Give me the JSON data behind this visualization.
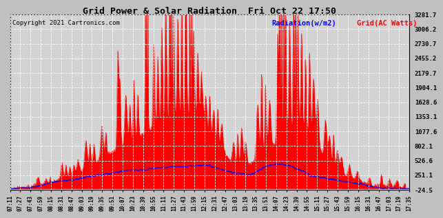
{
  "title": "Grid Power & Solar Radiation  Fri Oct 22 17:50",
  "copyright": "Copyright 2021 Cartronics.com",
  "legend_radiation": "Radiation(w/m2)",
  "legend_grid": "Grid(AC Watts)",
  "yticks": [
    3281.7,
    3006.2,
    2730.7,
    2455.2,
    2179.7,
    1904.1,
    1628.6,
    1353.1,
    1077.6,
    802.1,
    526.6,
    251.1,
    -24.5
  ],
  "ylim_min": -24.5,
  "ylim_max": 3281.7,
  "xtick_labels": [
    "07:11",
    "07:27",
    "07:43",
    "07:59",
    "08:15",
    "08:31",
    "08:47",
    "09:03",
    "09:19",
    "09:35",
    "09:51",
    "10:07",
    "10:23",
    "10:39",
    "10:55",
    "11:11",
    "11:27",
    "11:43",
    "11:59",
    "12:15",
    "12:31",
    "12:47",
    "13:03",
    "13:19",
    "13:35",
    "13:51",
    "14:07",
    "14:23",
    "14:39",
    "14:55",
    "15:11",
    "15:27",
    "15:43",
    "15:59",
    "16:15",
    "16:31",
    "16:47",
    "17:03",
    "17:19",
    "17:35"
  ],
  "background_color": "#c0c0c0",
  "plot_bg_color": "#d3d3d3",
  "grid_color": "#ffffff",
  "radiation_color": "#0000ff",
  "grid_power_color": "#ff0000",
  "grid_power_fill": "#ff0000",
  "title_color": "#000000",
  "copyright_color": "#000000",
  "legend_radiation_color": "#0000ff",
  "legend_grid_color": "#ff0000"
}
